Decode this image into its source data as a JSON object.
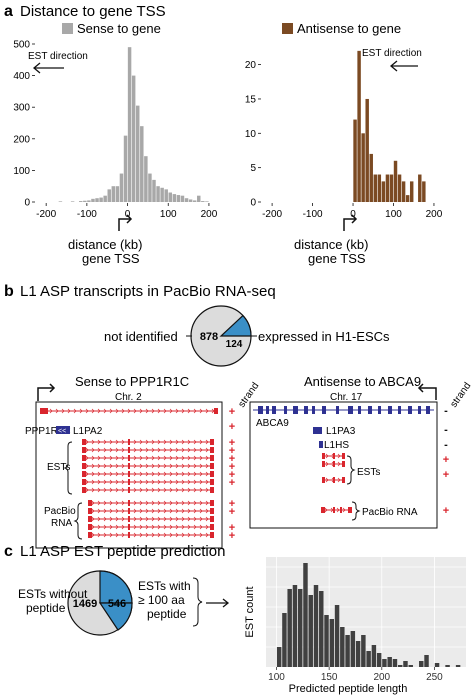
{
  "panel_a": {
    "letter": "a",
    "title": "Distance to gene TSS",
    "est_direction": "EST direction",
    "xlabel_line1": "distance (kb)",
    "xlabel_line2": "gene TSS",
    "colors": {
      "sense": "#a8a8a8",
      "antisense": "#7b4a23"
    }
  },
  "panel_b": {
    "letter": "b",
    "title": "L1 ASP transcripts in PacBio RNA-seq",
    "pie": {
      "not_identified_label": "not identified",
      "not_identified_value": "878",
      "expressed_label": "expressed in H1-ESCs",
      "expressed_value": "124"
    },
    "sense_track": {
      "title": "Sense to PPP1R1C",
      "chr": "Chr. 2",
      "gene": "PPP1R1C",
      "repeat": "L1PA2",
      "ests": "ESTs",
      "pacbio_l1": "PacBio",
      "pacbio_l2": "RNA",
      "strand_header": "strand",
      "strand_marks": [
        "+",
        "+",
        "+",
        "+",
        "+",
        "+",
        "+",
        "+",
        "+",
        "+",
        "+",
        "+"
      ]
    },
    "antisense_track": {
      "title": "Antisense to ABCA9",
      "chr": "Chr. 17",
      "gene": "ABCA9",
      "repeat1": "L1PA3",
      "repeat2": "L1HS",
      "ests": "ESTs",
      "pacbio": "PacBio RNA",
      "strand_header": "strand",
      "strand_marks": [
        "-",
        "-",
        "-",
        "+",
        "+",
        "+"
      ]
    }
  },
  "panel_c": {
    "letter": "c",
    "title": "L1 ASP EST peptide prediction",
    "pie": {
      "without_l1": "ESTs without",
      "without_l2": "peptide",
      "without_value": "1469",
      "with_value": "546",
      "with_l1": "ESTs with",
      "with_l2": "≥ 100 aa",
      "with_l3": "peptide"
    }
  },
  "chart_data": [
    {
      "type": "bar",
      "title": "Sense to gene",
      "xlabel": "distance (kb) gene TSS",
      "ylabel": "",
      "xlim": [
        -225,
        210
      ],
      "ylim": [
        0,
        500
      ],
      "xticks": [
        -200,
        -100,
        0,
        100,
        200
      ],
      "yticks": [
        0,
        100,
        200,
        300,
        400,
        500
      ],
      "bar_width": 10,
      "x": [
        -170,
        -140,
        -120,
        -110,
        -100,
        -90,
        -80,
        -70,
        -60,
        -50,
        -40,
        -30,
        -20,
        -10,
        0,
        10,
        20,
        30,
        40,
        50,
        60,
        70,
        80,
        90,
        100,
        110,
        120,
        130,
        140,
        150,
        160,
        170,
        180,
        190
      ],
      "values": [
        2,
        2,
        3,
        4,
        5,
        10,
        12,
        14,
        20,
        40,
        50,
        50,
        90,
        210,
        490,
        400,
        305,
        240,
        145,
        90,
        70,
        50,
        45,
        40,
        30,
        25,
        22,
        20,
        12,
        8,
        5,
        20,
        3,
        2
      ],
      "color": "#a8a8a8"
    },
    {
      "type": "bar",
      "title": "Antisense to gene",
      "xlabel": "distance (kb) gene TSS",
      "ylabel": "",
      "xlim": [
        -225,
        210
      ],
      "ylim": [
        0,
        23
      ],
      "xticks": [
        -200,
        -100,
        0,
        100,
        200
      ],
      "yticks": [
        0,
        5,
        10,
        15,
        20
      ],
      "bar_width": 10,
      "x": [
        0,
        10,
        20,
        30,
        40,
        50,
        60,
        70,
        80,
        90,
        100,
        110,
        120,
        130,
        140,
        150,
        160,
        170
      ],
      "values": [
        12,
        22,
        10,
        15,
        7,
        4,
        4,
        3,
        4,
        4,
        6,
        4,
        3,
        1,
        3,
        0,
        4,
        3
      ],
      "color": "#7b4a23"
    },
    {
      "type": "bar",
      "title": "",
      "xlabel": "Predicted peptide length",
      "ylabel": "EST count",
      "xlim": [
        90,
        280
      ],
      "ylim": [
        0,
        55
      ],
      "xticks": [
        100,
        150,
        200,
        250
      ],
      "yticks": [],
      "bar_width": 5,
      "x": [
        100,
        105,
        110,
        115,
        120,
        125,
        130,
        135,
        140,
        145,
        150,
        155,
        160,
        165,
        170,
        175,
        180,
        185,
        190,
        195,
        200,
        205,
        210,
        215,
        220,
        225,
        230,
        235,
        240,
        245,
        250,
        255,
        260,
        265,
        270
      ],
      "values": [
        10,
        27,
        39,
        41,
        39,
        52,
        36,
        41,
        38,
        26,
        24,
        31,
        20,
        16,
        18,
        13,
        16,
        8,
        11,
        7,
        4,
        5,
        4,
        1,
        3,
        1,
        0,
        3,
        6,
        0,
        2,
        0,
        1,
        0,
        1
      ],
      "color": "#404040"
    }
  ]
}
